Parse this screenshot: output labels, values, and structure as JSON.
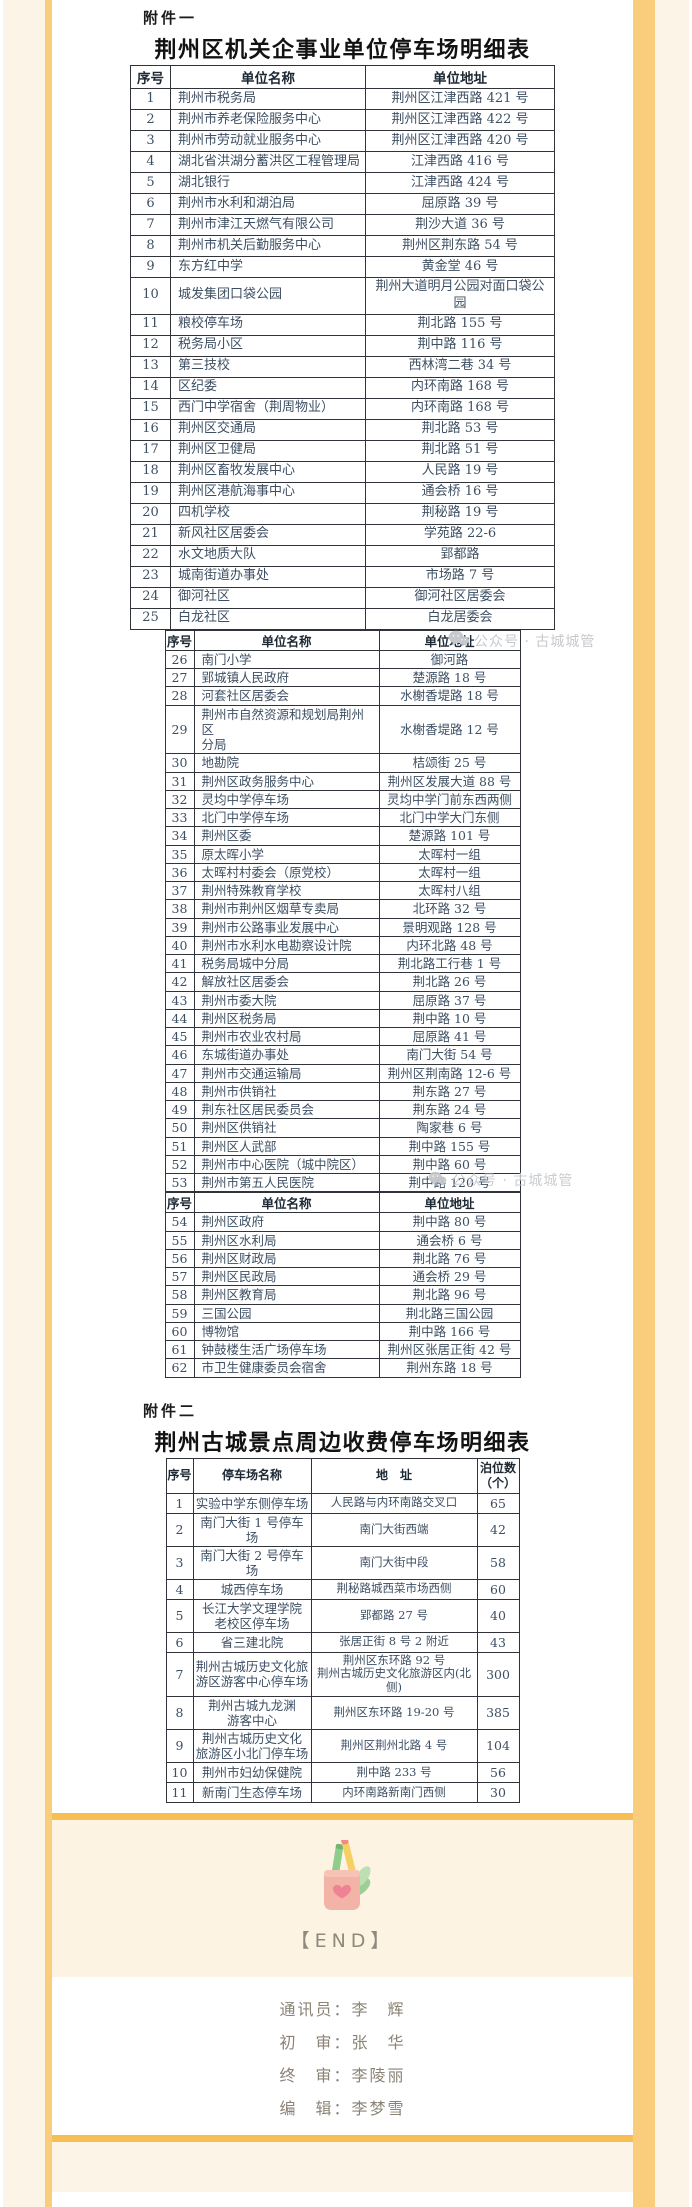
{
  "page": {
    "attachment1_label": "附件一",
    "table1_title": "荆州区机关企事业单位停车场明细表",
    "attachment2_label": "附件二",
    "table4_title": "荆州古城景点周边收费停车场明细表",
    "watermark": "公众号 · 古城城管",
    "end_label": "【END】",
    "credits": [
      "通讯员：李　辉",
      "初　审：张　华",
      "终　审：李陵丽",
      "编　辑：李梦雪"
    ],
    "colors": {
      "accent_gold": "#F6BE53",
      "frame_stripe_gold": "#FACD7D",
      "cream_background": "#FDF4E8",
      "table_text": "#3D4F63",
      "watermark_gray": "#C6C9CD"
    }
  },
  "unit_headers": [
    "序号",
    "单位名称",
    "单位地址"
  ],
  "unit_tables": [
    {
      "rows": [
        [
          "1",
          "荆州市税务局",
          "荆州区江津西路 421 号"
        ],
        [
          "2",
          "荆州市养老保险服务中心",
          "荆州区江津西路 422 号"
        ],
        [
          "3",
          "荆州市劳动就业服务中心",
          "荆州区江津西路 420 号"
        ],
        [
          "4",
          "湖北省洪湖分蓄洪区工程管理局",
          "江津西路 416 号"
        ],
        [
          "5",
          "湖北银行",
          "江津西路 424 号"
        ],
        [
          "6",
          "荆州市水利和湖泊局",
          "屈原路 39 号"
        ],
        [
          "7",
          "荆州市津江天燃气有限公司",
          "荆沙大道 36 号"
        ],
        [
          "8",
          "荆州市机关后勤服务中心",
          "荆州区荆东路 54 号"
        ],
        [
          "9",
          "东方红中学",
          "黄金堂 46 号"
        ],
        [
          "10",
          "城发集团口袋公园",
          "荆州大道明月公园对面口袋公\n园"
        ],
        [
          "11",
          "粮校停车场",
          "荆北路 155 号"
        ],
        [
          "12",
          "税务局小区",
          "荆中路 116 号"
        ],
        [
          "13",
          "第三技校",
          "西林湾二巷 34 号"
        ],
        [
          "14",
          "区纪委",
          "内环南路 168 号"
        ],
        [
          "15",
          "西门中学宿舍（荆周物业）",
          "内环南路 168 号"
        ],
        [
          "16",
          "荆州区交通局",
          "荆北路 53 号"
        ],
        [
          "17",
          "荆州区卫健局",
          "荆北路 51 号"
        ],
        [
          "18",
          "荆州区畜牧发展中心",
          "人民路 19 号"
        ],
        [
          "19",
          "荆州区港航海事中心",
          "通会桥 16 号"
        ],
        [
          "20",
          "四机学校",
          "荆秘路 19 号"
        ],
        [
          "21",
          "新风社区居委会",
          "学苑路 22-6"
        ],
        [
          "22",
          "水文地质大队",
          "郢都路"
        ],
        [
          "23",
          "城南街道办事处",
          "市场路 7 号"
        ],
        [
          "24",
          "御河社区",
          "御河社区居委会"
        ],
        [
          "25",
          "白龙社区",
          "白龙居委会"
        ]
      ]
    },
    {
      "rows": [
        [
          "26",
          "南门小学",
          "御河路"
        ],
        [
          "27",
          "郢城镇人民政府",
          "楚源路 18 号"
        ],
        [
          "28",
          "河套社区居委会",
          "水榭香堤路 18 号"
        ],
        [
          "29",
          "荆州市自然资源和规划局荆州区\n分局",
          "水榭香堤路 12 号"
        ],
        [
          "30",
          "地勘院",
          "桔颂街 25 号"
        ],
        [
          "31",
          "荆州区政务服务中心",
          "荆州区发展大道 88 号"
        ],
        [
          "32",
          "灵均中学停车场",
          "灵均中学门前东西两侧"
        ],
        [
          "33",
          "北门中学停车场",
          "北门中学大门东侧"
        ],
        [
          "34",
          "荆州区委",
          "楚源路 101 号"
        ],
        [
          "35",
          "原太晖小学",
          "太晖村一组"
        ],
        [
          "36",
          "太晖村村委会（原党校）",
          "太晖村一组"
        ],
        [
          "37",
          "荆州特殊教育学校",
          "太晖村八组"
        ],
        [
          "38",
          "荆州市荆州区烟草专卖局",
          "北环路 32 号"
        ],
        [
          "39",
          "荆州市公路事业发展中心",
          "景明观路 128 号"
        ],
        [
          "40",
          "荆州市水利水电勘察设计院",
          "内环北路 48 号"
        ],
        [
          "41",
          "税务局城中分局",
          "荆北路工行巷 1 号"
        ],
        [
          "42",
          "解放社区居委会",
          "荆北路 26 号"
        ],
        [
          "43",
          "荆州市委大院",
          "屈原路 37 号"
        ],
        [
          "44",
          "荆州区税务局",
          "荆中路 10 号"
        ],
        [
          "45",
          "荆州市农业农村局",
          "屈原路 41 号"
        ],
        [
          "46",
          "东城街道办事处",
          "南门大街 54 号"
        ],
        [
          "47",
          "荆州市交通运输局",
          "荆州区荆南路 12-6 号"
        ],
        [
          "48",
          "荆州市供销社",
          "荆东路 27 号"
        ],
        [
          "49",
          "荆东社区居民委员会",
          "荆东路 24 号"
        ],
        [
          "50",
          "荆州区供销社",
          "陶家巷 6 号"
        ],
        [
          "51",
          "荆州区人武部",
          "荆中路 155 号"
        ],
        [
          "52",
          "荆州市中心医院（城中院区）",
          "荆中路 60 号"
        ],
        [
          "53",
          "荆州市第五人民医院",
          "荆中路 120 号"
        ]
      ]
    },
    {
      "rows": [
        [
          "54",
          "荆州区政府",
          "荆中路 80 号"
        ],
        [
          "55",
          "荆州区水利局",
          "通会桥 6 号"
        ],
        [
          "56",
          "荆州区财政局",
          "荆北路 76 号"
        ],
        [
          "57",
          "荆州区民政局",
          "通会桥 29 号"
        ],
        [
          "58",
          "荆州区教育局",
          "荆北路 96 号"
        ],
        [
          "59",
          "三国公园",
          "荆北路三国公园"
        ],
        [
          "60",
          "博物馆",
          "荆中路 166 号"
        ],
        [
          "61",
          "钟鼓楼生活广场停车场",
          "荆州区张居正街 42 号"
        ],
        [
          "62",
          "市卫生健康委员会宿舍",
          "荆州东路 18 号"
        ]
      ]
    }
  ],
  "fee_table": {
    "headers": [
      "序号",
      "停车场名称",
      "地　址",
      "泊位数\n（个）"
    ],
    "rows": [
      [
        "1",
        "实验中学东侧停车场",
        "人民路与内环南路交叉口",
        "65"
      ],
      [
        "2",
        "南门大街 1 号停车场",
        "南门大街西端",
        "42"
      ],
      [
        "3",
        "南门大街 2 号停车场",
        "南门大街中段",
        "58"
      ],
      [
        "4",
        "城西停车场",
        "荆秘路城西菜市场西侧",
        "60"
      ],
      [
        "5",
        "长江大学文理学院\n老校区停车场",
        "郢都路 27 号",
        "40"
      ],
      [
        "6",
        "省三建北院",
        "张居正街 8 号 2 附近",
        "43"
      ],
      [
        "7",
        "荆州古城历史文化旅\n游区游客中心停车场",
        "荆州区东环路 92 号\n荆州古城历史文化旅游区内(北侧)",
        "300"
      ],
      [
        "8",
        "荆州古城九龙渊\n游客中心",
        "荆州区东环路 19-20 号",
        "385"
      ],
      [
        "9",
        "荆州古城历史文化\n旅游区小北门停车场",
        "荆州区荆州北路 4 号",
        "104"
      ],
      [
        "10",
        "荆州市妇幼保健院",
        "荆中路 233 号",
        "56"
      ],
      [
        "11",
        "新南门生态停车场",
        "内环南路新南门西侧",
        "30"
      ]
    ]
  }
}
